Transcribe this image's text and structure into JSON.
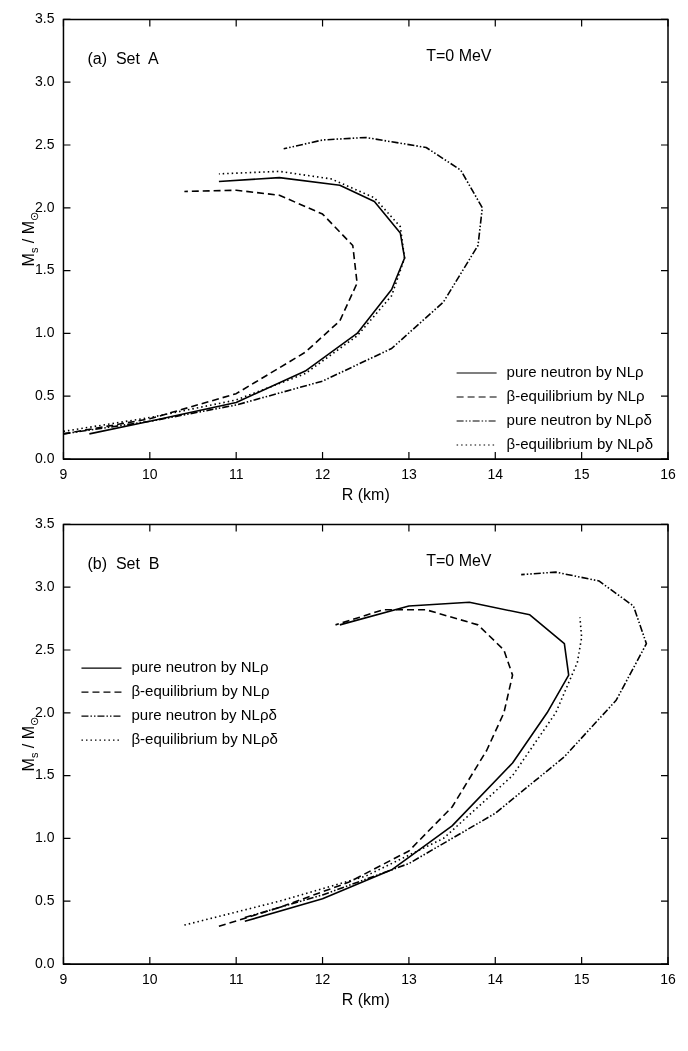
{
  "chart_data": [
    {
      "type": "line",
      "title": null,
      "xlabel": "R (km)",
      "ylabel": "M$_{s}$ / M$_{⊙}$",
      "annotations": [
        "(a)  Set  A",
        "T=0 MeV"
      ],
      "xlim": [
        9,
        16
      ],
      "xticks": [
        9,
        10,
        11,
        12,
        13,
        14,
        15,
        16
      ],
      "ylim": [
        0,
        3.5
      ],
      "yticks": [
        {
          "value": 0,
          "label": "0.0"
        },
        {
          "value": 0.5,
          "label": "0.5"
        },
        {
          "value": 1,
          "label": "1.0"
        },
        {
          "value": 1.5,
          "label": "1.5"
        },
        {
          "value": 2,
          "label": "2.0"
        },
        {
          "value": 2.5,
          "label": "2.5"
        },
        {
          "value": 3,
          "label": "3.0"
        },
        {
          "value": 3.5,
          "label": "3.5"
        }
      ],
      "grid": false,
      "legend": "bottom right",
      "marker": "none",
      "series": [
        {
          "name": "pure neutron by NLρ",
          "color": "#000000",
          "line_style": "solid",
          "x": [
            9.3,
            10,
            11,
            11.8,
            12.4,
            12.8,
            12.95,
            12.9,
            12.6,
            12.2,
            11.5,
            10.8
          ],
          "values": [
            0.2,
            0.3,
            0.45,
            0.7,
            1.0,
            1.35,
            1.6,
            1.8,
            2.05,
            2.18,
            2.24,
            2.21
          ]
        },
        {
          "name": "β-equilibrium by NLρ",
          "color": "#000000",
          "line_style": "dashed",
          "x": [
            9,
            10,
            11,
            11.8,
            12.2,
            12.4,
            12.35,
            12.0,
            11.5,
            11,
            10.4
          ],
          "values": [
            0.2,
            0.32,
            0.52,
            0.85,
            1.1,
            1.4,
            1.7,
            1.95,
            2.1,
            2.14,
            2.13
          ]
        },
        {
          "name": "pure neutron by NLρδ",
          "color": "#000000",
          "line_style": "dashdot",
          "x": [
            9,
            10,
            11,
            12,
            12.8,
            13.4,
            13.8,
            13.85,
            13.6,
            13.2,
            12.5,
            12,
            11.55
          ],
          "values": [
            0.2,
            0.3,
            0.43,
            0.62,
            0.88,
            1.25,
            1.7,
            2.0,
            2.3,
            2.48,
            2.56,
            2.54,
            2.47
          ]
        },
        {
          "name": "β-equilibrium by NLρδ",
          "color": "#000000",
          "line_style": "dotted",
          "x": [
            9,
            10,
            11,
            11.8,
            12.4,
            12.8,
            12.95,
            12.9,
            12.6,
            12.1,
            11.5,
            10.8
          ],
          "values": [
            0.22,
            0.33,
            0.47,
            0.68,
            0.98,
            1.3,
            1.6,
            1.85,
            2.08,
            2.23,
            2.29,
            2.27
          ]
        }
      ]
    },
    {
      "type": "line",
      "title": null,
      "xlabel": "R (km)",
      "ylabel": "M$_{s}$ / M$_{⊙}$",
      "annotations": [
        "(b)  Set  B",
        "T=0 MeV"
      ],
      "xlim": [
        9,
        16
      ],
      "xticks": [
        9,
        10,
        11,
        12,
        13,
        14,
        15,
        16
      ],
      "ylim": [
        0,
        3.5
      ],
      "yticks": [
        {
          "value": 0,
          "label": "0.0"
        },
        {
          "value": 0.5,
          "label": "0.5"
        },
        {
          "value": 1,
          "label": "1.0"
        },
        {
          "value": 1.5,
          "label": "1.5"
        },
        {
          "value": 2,
          "label": "2.0"
        },
        {
          "value": 2.5,
          "label": "2.5"
        },
        {
          "value": 3,
          "label": "3.0"
        },
        {
          "value": 3.5,
          "label": "3.5"
        }
      ],
      "grid": false,
      "legend": "left",
      "marker": "none",
      "series": [
        {
          "name": "pure neutron by NLρ",
          "color": "#000000",
          "line_style": "solid",
          "x": [
            11.1,
            12,
            12.8,
            13.5,
            14.2,
            14.6,
            14.85,
            14.8,
            14.4,
            13.7,
            13,
            12.2
          ],
          "values": [
            0.34,
            0.52,
            0.75,
            1.1,
            1.6,
            2.0,
            2.3,
            2.55,
            2.78,
            2.88,
            2.85,
            2.7
          ]
        },
        {
          "name": "β-equilibrium by NLρ",
          "color": "#000000",
          "line_style": "dashed",
          "x": [
            10.8,
            11.5,
            12.3,
            13,
            13.5,
            13.9,
            14.1,
            14.2,
            14.1,
            13.8,
            13.2,
            12.7,
            12.15
          ],
          "values": [
            0.3,
            0.45,
            0.65,
            0.9,
            1.25,
            1.7,
            2.0,
            2.3,
            2.5,
            2.7,
            2.82,
            2.82,
            2.7
          ]
        },
        {
          "name": "pure neutron by NLρδ",
          "color": "#000000",
          "line_style": "dashdot",
          "x": [
            11.1,
            12,
            13,
            14,
            14.8,
            15.4,
            15.75,
            15.6,
            15.2,
            14.7,
            14.3
          ],
          "values": [
            0.37,
            0.55,
            0.8,
            1.2,
            1.65,
            2.1,
            2.55,
            2.85,
            3.05,
            3.12,
            3.1
          ]
        },
        {
          "name": "β-equilibrium by NLρδ",
          "color": "#000000",
          "line_style": "dotted",
          "x": [
            10.4,
            11.5,
            12.5,
            13.4,
            14.2,
            14.7,
            14.95,
            15.0,
            14.98
          ],
          "values": [
            0.31,
            0.5,
            0.7,
            1.0,
            1.5,
            2.0,
            2.4,
            2.6,
            2.76
          ]
        }
      ]
    }
  ]
}
